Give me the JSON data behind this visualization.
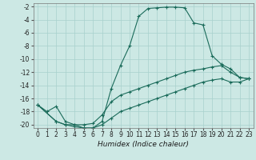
{
  "xlabel": "Humidex (Indice chaleur)",
  "background_color": "#cce8e4",
  "grid_color": "#a8d0cc",
  "line_color": "#1a6b5a",
  "xlim": [
    -0.5,
    23.5
  ],
  "ylim": [
    -20.5,
    -1.5
  ],
  "yticks": [
    -20,
    -18,
    -16,
    -14,
    -12,
    -10,
    -8,
    -6,
    -4,
    -2
  ],
  "xticks": [
    0,
    1,
    2,
    3,
    4,
    5,
    6,
    7,
    8,
    9,
    10,
    11,
    12,
    13,
    14,
    15,
    16,
    17,
    18,
    19,
    20,
    21,
    22,
    23
  ],
  "curve1_x": [
    0,
    1,
    2,
    3,
    4,
    5,
    6,
    7,
    8,
    9,
    10,
    11,
    12,
    13,
    14,
    15,
    16,
    17,
    18,
    19,
    20,
    21,
    22,
    23
  ],
  "curve1_y": [
    -17.0,
    -18.0,
    -17.2,
    -19.5,
    -20.0,
    -20.5,
    -20.5,
    -19.5,
    -14.5,
    -11.0,
    -8.0,
    -3.5,
    -2.3,
    -2.2,
    -2.1,
    -2.1,
    -2.2,
    -4.5,
    -4.8,
    -9.5,
    -10.8,
    -11.5,
    -12.8,
    -13.0
  ],
  "curve2_x": [
    0,
    2,
    3,
    4,
    5,
    6,
    7,
    8,
    9,
    10,
    11,
    12,
    13,
    14,
    15,
    16,
    17,
    18,
    19,
    20,
    21,
    22,
    23
  ],
  "curve2_y": [
    -17.0,
    -19.5,
    -20.0,
    -20.0,
    -20.0,
    -19.8,
    -18.5,
    -16.5,
    -15.5,
    -15.0,
    -14.5,
    -14.0,
    -13.5,
    -13.0,
    -12.5,
    -12.0,
    -11.7,
    -11.5,
    -11.2,
    -11.0,
    -12.0,
    -12.8,
    -13.0
  ],
  "curve3_x": [
    0,
    2,
    3,
    4,
    5,
    6,
    7,
    8,
    9,
    10,
    11,
    12,
    13,
    14,
    15,
    16,
    17,
    18,
    19,
    20,
    21,
    22,
    23
  ],
  "curve3_y": [
    -17.0,
    -19.5,
    -20.0,
    -20.3,
    -20.5,
    -20.5,
    -20.0,
    -19.0,
    -18.0,
    -17.5,
    -17.0,
    -16.5,
    -16.0,
    -15.5,
    -15.0,
    -14.5,
    -14.0,
    -13.5,
    -13.2,
    -13.0,
    -13.5,
    -13.5,
    -13.0
  ]
}
